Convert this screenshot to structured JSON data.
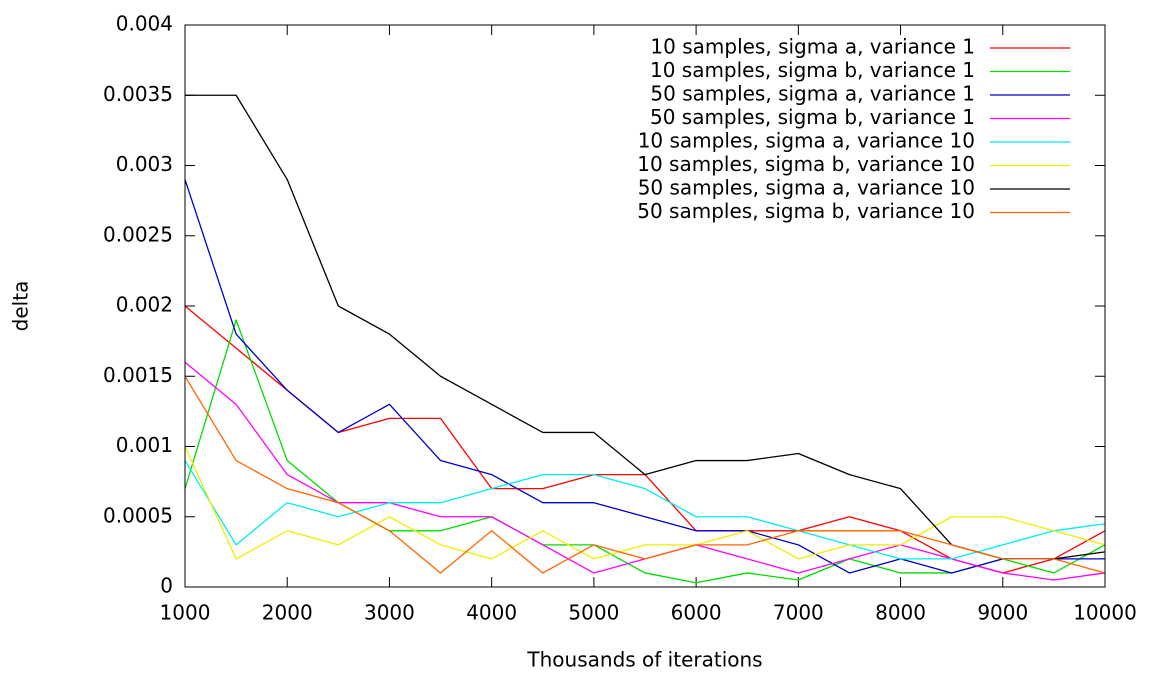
{
  "chart_data": {
    "type": "line",
    "x_label": "Thousands of iterations",
    "y_label": "delta",
    "x": [
      1000,
      1500,
      2000,
      2500,
      3000,
      3500,
      4000,
      4500,
      5000,
      5500,
      6000,
      6500,
      7000,
      7500,
      8000,
      8500,
      9000,
      9500,
      10000
    ],
    "xlim": [
      1000,
      10000
    ],
    "xticks": [
      1000,
      2000,
      3000,
      4000,
      5000,
      6000,
      7000,
      8000,
      9000,
      10000
    ],
    "ylim": [
      0,
      0.004
    ],
    "yticks": [
      0,
      0.0005,
      0.001,
      0.0015,
      0.002,
      0.0025,
      0.003,
      0.0035,
      0.004
    ],
    "legend": "top-right",
    "series": [
      {
        "name": "10 samples, sigma a, variance 1",
        "color": "#ff0000",
        "values": [
          0.002,
          0.0017,
          0.0014,
          0.0011,
          0.0012,
          0.0012,
          0.0007,
          0.0007,
          0.0008,
          0.0008,
          0.0004,
          0.0004,
          0.0004,
          0.0005,
          0.0004,
          0.0002,
          0.0001,
          0.0002,
          0.0004
        ]
      },
      {
        "name": "10 samples, sigma b, variance 1",
        "color": "#00dd00",
        "values": [
          0.0007,
          0.0019,
          0.0009,
          0.0006,
          0.0004,
          0.0004,
          0.0005,
          0.0003,
          0.0003,
          0.0001,
          3e-05,
          0.0001,
          5e-05,
          0.0002,
          0.0001,
          0.0001,
          0.0002,
          0.0001,
          0.0003
        ]
      },
      {
        "name": "50 samples, sigma a, variance 1",
        "color": "#0000cc",
        "values": [
          0.0029,
          0.0018,
          0.0014,
          0.0011,
          0.0013,
          0.0009,
          0.0008,
          0.0006,
          0.0006,
          0.0005,
          0.0004,
          0.0004,
          0.0003,
          0.0001,
          0.0002,
          0.0001,
          0.0002,
          0.0002,
          0.0002
        ]
      },
      {
        "name": "50 samples, sigma b, variance 1",
        "color": "#ff00ff",
        "values": [
          0.0016,
          0.0013,
          0.0008,
          0.0006,
          0.0006,
          0.0005,
          0.0005,
          0.0003,
          0.0001,
          0.0002,
          0.0003,
          0.0002,
          0.0001,
          0.0002,
          0.0003,
          0.0002,
          0.0001,
          5e-05,
          0.0001
        ]
      },
      {
        "name": "10 samples, sigma a, variance 10",
        "color": "#00eeee",
        "values": [
          0.0009,
          0.0003,
          0.0006,
          0.0005,
          0.0006,
          0.0006,
          0.0007,
          0.0008,
          0.0008,
          0.0007,
          0.0005,
          0.0005,
          0.0004,
          0.0003,
          0.0002,
          0.0002,
          0.0003,
          0.0004,
          0.00045
        ]
      },
      {
        "name": "10 samples, sigma b, variance 10",
        "color": "#eeee00",
        "values": [
          0.001,
          0.0002,
          0.0004,
          0.0003,
          0.0005,
          0.0003,
          0.0002,
          0.0004,
          0.0002,
          0.0003,
          0.0003,
          0.0004,
          0.0002,
          0.0003,
          0.0003,
          0.0005,
          0.0005,
          0.0004,
          0.0003
        ]
      },
      {
        "name": "50 samples, sigma a, variance 10",
        "color": "#000000",
        "values": [
          0.0035,
          0.0035,
          0.0029,
          0.002,
          0.0018,
          0.0015,
          0.0013,
          0.0011,
          0.0011,
          0.0008,
          0.0009,
          0.0009,
          0.00095,
          0.0008,
          0.0007,
          0.0003,
          0.0002,
          0.0002,
          0.00025
        ]
      },
      {
        "name": "50 samples, sigma b, variance 10",
        "color": "#ff6600",
        "values": [
          0.0015,
          0.0009,
          0.0007,
          0.0006,
          0.0004,
          0.0001,
          0.0004,
          0.0001,
          0.0003,
          0.0002,
          0.0003,
          0.0003,
          0.0004,
          0.0004,
          0.0004,
          0.0003,
          0.0002,
          0.0002,
          0.0001
        ]
      }
    ]
  }
}
